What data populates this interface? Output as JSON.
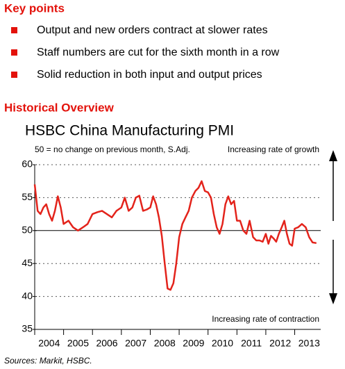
{
  "key_points": {
    "title": "Key points",
    "items": [
      "Output and new orders contract at slower rates",
      "Staff numbers are cut for the sixth month in a row",
      "Solid reduction in both input and output prices"
    ]
  },
  "overview": {
    "title": "Historical Overview"
  },
  "chart_data": {
    "type": "line",
    "title": "HSBC China Manufacturing PMI",
    "subtitle": "50 = no change on previous month, S.Adj.",
    "annotations": [
      "Increasing rate of growth",
      "Increasing rate of contraction"
    ],
    "color": "#e3231b",
    "reference_line": 50,
    "ylim": [
      35,
      60
    ],
    "yticks": [
      35,
      40,
      45,
      50,
      55,
      60
    ],
    "xlim": [
      2004,
      2013.9
    ],
    "xticks": [
      {
        "value": 2004,
        "label": "2004"
      },
      {
        "value": 2005,
        "label": "2005"
      },
      {
        "value": 2006,
        "label": "2006"
      },
      {
        "value": 2007,
        "label": "2007"
      },
      {
        "value": 2008,
        "label": "2008"
      },
      {
        "value": 2009,
        "label": "2009"
      },
      {
        "value": 2010,
        "label": "2010"
      },
      {
        "value": 2011,
        "label": "2011"
      },
      {
        "value": 2012,
        "label": "2012"
      },
      {
        "value": 2013,
        "label": "2013"
      }
    ],
    "x": [
      2004.0,
      2004.1,
      2004.2,
      2004.3,
      2004.4,
      2004.5,
      2004.6,
      2004.7,
      2004.8,
      2004.9,
      2005.0,
      2005.17,
      2005.33,
      2005.5,
      2005.67,
      2005.83,
      2006.0,
      2006.17,
      2006.33,
      2006.5,
      2006.67,
      2006.83,
      2007.0,
      2007.12,
      2007.25,
      2007.38,
      2007.5,
      2007.62,
      2007.75,
      2007.88,
      2008.0,
      2008.1,
      2008.2,
      2008.3,
      2008.4,
      2008.5,
      2008.6,
      2008.7,
      2008.8,
      2008.9,
      2009.0,
      2009.11,
      2009.22,
      2009.33,
      2009.44,
      2009.56,
      2009.67,
      2009.78,
      2009.89,
      2010.0,
      2010.1,
      2010.2,
      2010.3,
      2010.4,
      2010.5,
      2010.6,
      2010.7,
      2010.8,
      2010.9,
      2011.0,
      2011.11,
      2011.22,
      2011.33,
      2011.44,
      2011.56,
      2011.67,
      2011.78,
      2011.89,
      2012.0,
      2012.09,
      2012.18,
      2012.27,
      2012.36,
      2012.45,
      2012.55,
      2012.64,
      2012.73,
      2012.82,
      2012.91,
      2013.0,
      2013.12,
      2013.25,
      2013.38,
      2013.5,
      2013.62,
      2013.75
    ],
    "values": [
      57,
      53,
      52.5,
      53.5,
      54,
      52.5,
      51.5,
      53,
      55.2,
      53.5,
      51,
      51.5,
      50.5,
      50,
      50.5,
      51,
      52.5,
      52.8,
      53,
      52.5,
      52,
      53,
      53.5,
      55,
      53,
      53.5,
      55,
      55.3,
      53,
      53.2,
      53.5,
      55.2,
      54,
      52,
      49.2,
      45,
      41.2,
      41,
      42,
      45,
      49,
      51,
      52,
      53,
      55,
      56,
      56.5,
      57.5,
      56,
      55.8,
      55,
      52.5,
      50.5,
      49.5,
      51,
      54,
      55.2,
      54,
      54.5,
      51.5,
      51.5,
      50,
      49.5,
      51.5,
      49,
      48.5,
      48.5,
      48.3,
      49.5,
      48,
      49.2,
      48.8,
      48.3,
      49.5,
      50.5,
      51.5,
      49.5,
      48,
      47.7,
      50.3,
      50.5,
      51,
      50.5,
      49,
      48.2,
      48.1
    ]
  },
  "source": "Sources: Markit, HSBC."
}
